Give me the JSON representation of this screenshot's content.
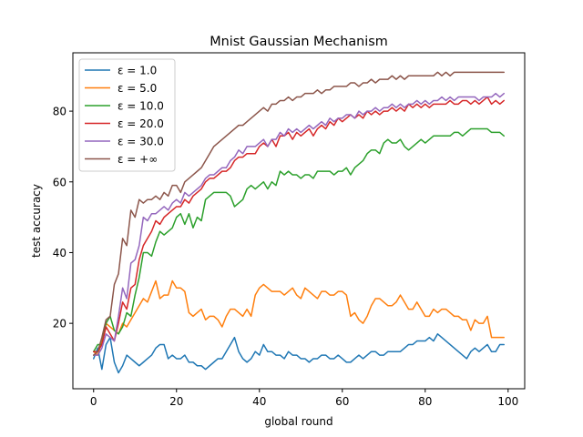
{
  "chart_data": {
    "type": "line",
    "title": "Mnist Gaussian Mechanism",
    "xlabel": "global round",
    "ylabel": "test accuracy",
    "xlim": [
      -5,
      104
    ],
    "ylim": [
      1.5,
      96.5
    ],
    "xticks": [
      0,
      20,
      40,
      60,
      80,
      100
    ],
    "yticks": [
      20,
      40,
      60,
      80
    ],
    "grid": false,
    "legend_position": "top-left",
    "x": {
      "start": 0,
      "end": 99,
      "step": 1
    },
    "series": [
      {
        "name": "ε = 1.0",
        "legend_label": "ε = 1.0",
        "color": "#1f77b4",
        "values": [
          10,
          13,
          7,
          14,
          16,
          9,
          6,
          8,
          11,
          10,
          9,
          8,
          9,
          10,
          11,
          13,
          14,
          14,
          10,
          11,
          10,
          10,
          11,
          9,
          9,
          8,
          8,
          7,
          8,
          9,
          10,
          10,
          12,
          14,
          16,
          12,
          10,
          9,
          10,
          12,
          11,
          14,
          12,
          12,
          11,
          11,
          10,
          12,
          11,
          11,
          10,
          10,
          9,
          10,
          10,
          11,
          11,
          10,
          10,
          11,
          10,
          9,
          9,
          10,
          11,
          10,
          11,
          12,
          12,
          11,
          11,
          12,
          12,
          12,
          12,
          13,
          14,
          14,
          15,
          15,
          15,
          16,
          15,
          17,
          16,
          15,
          14,
          13,
          12,
          11,
          10,
          12,
          13,
          12,
          13,
          14,
          12,
          12,
          14,
          14
        ]
      },
      {
        "name": "ε = 5.0",
        "legend_label": "ε = 5.0",
        "color": "#ff7f0e",
        "values": [
          12,
          11,
          15,
          20,
          19,
          18,
          17,
          20,
          19,
          21,
          23,
          25,
          27,
          26,
          29,
          32,
          27,
          28,
          28,
          32,
          30,
          30,
          29,
          23,
          22,
          23,
          24,
          21,
          22,
          22,
          21,
          19,
          22,
          24,
          24,
          23,
          22,
          24,
          22,
          28,
          30,
          31,
          30,
          29,
          29,
          29,
          28,
          29,
          30,
          28,
          27,
          30,
          29,
          28,
          27,
          29,
          29,
          28,
          28,
          29,
          29,
          28,
          22,
          23,
          21,
          20,
          22,
          25,
          27,
          27,
          26,
          25,
          25,
          26,
          28,
          26,
          24,
          24,
          26,
          24,
          22,
          22,
          24,
          23,
          24,
          24,
          23,
          22,
          22,
          21,
          21,
          18,
          21,
          20,
          20,
          22,
          16,
          16,
          16,
          16
        ]
      },
      {
        "name": "ε = 10.0",
        "legend_label": "ε = 10.0",
        "color": "#2ca02c",
        "values": [
          12,
          14,
          14,
          20,
          22,
          18,
          17,
          19,
          23,
          22,
          28,
          33,
          40,
          40,
          39,
          43,
          46,
          45,
          46,
          47,
          50,
          51,
          48,
          51,
          47,
          50,
          49,
          55,
          56,
          57,
          57,
          57,
          57,
          56,
          53,
          54,
          55,
          58,
          59,
          58,
          59,
          60,
          58,
          60,
          59,
          63,
          62,
          63,
          62,
          62,
          61,
          62,
          62,
          61,
          63,
          63,
          63,
          63,
          62,
          63,
          63,
          64,
          62,
          64,
          65,
          66,
          68,
          69,
          69,
          68,
          71,
          72,
          71,
          71,
          72,
          70,
          69,
          70,
          71,
          72,
          71,
          72,
          73,
          73,
          73,
          73,
          73,
          74,
          74,
          73,
          74,
          75,
          75,
          75,
          75,
          75,
          74,
          74,
          74,
          73
        ]
      },
      {
        "name": "ε = 20.0",
        "legend_label": "ε = 20.0",
        "color": "#d62728",
        "values": [
          12,
          12,
          14,
          19,
          17,
          15,
          20,
          26,
          24,
          30,
          31,
          38,
          42,
          44,
          46,
          49,
          48,
          50,
          51,
          52,
          53,
          53,
          55,
          54,
          56,
          57,
          58,
          60,
          61,
          61,
          62,
          63,
          63,
          64,
          66,
          67,
          67,
          68,
          68,
          68,
          70,
          71,
          70,
          72,
          70,
          73,
          73,
          74,
          72,
          74,
          73,
          74,
          75,
          73,
          75,
          76,
          75,
          77,
          76,
          78,
          77,
          78,
          79,
          78,
          79,
          78,
          80,
          79,
          80,
          79,
          80,
          80,
          81,
          80,
          81,
          80,
          82,
          81,
          82,
          81,
          82,
          81,
          82,
          82,
          82,
          82,
          83,
          82,
          82,
          83,
          83,
          82,
          83,
          82,
          83,
          84,
          82,
          83,
          82,
          83
        ]
      },
      {
        "name": "ε = 30.0",
        "legend_label": "ε = 30.0",
        "color": "#9467bd",
        "values": [
          11,
          11,
          13,
          17,
          16,
          15,
          22,
          30,
          27,
          37,
          38,
          42,
          50,
          49,
          51,
          51,
          52,
          53,
          52,
          54,
          55,
          54,
          57,
          56,
          57,
          58,
          59,
          61,
          62,
          62,
          63,
          64,
          64,
          66,
          67,
          69,
          68,
          70,
          70,
          70,
          71,
          72,
          70,
          72,
          72,
          74,
          73,
          75,
          74,
          75,
          74,
          75,
          76,
          75,
          76,
          77,
          76,
          78,
          77,
          78,
          78,
          79,
          79,
          78,
          80,
          79,
          80,
          80,
          81,
          80,
          81,
          81,
          82,
          81,
          82,
          81,
          82,
          82,
          83,
          82,
          83,
          82,
          83,
          83,
          84,
          83,
          84,
          83,
          84,
          84,
          84,
          84,
          84,
          83,
          84,
          84,
          84,
          85,
          84,
          85
        ]
      },
      {
        "name": "ε = +∞",
        "legend_label": "ε = +∞",
        "color": "#8c564b",
        "values": [
          11,
          12,
          16,
          21,
          22,
          31,
          34,
          44,
          42,
          52,
          50,
          55,
          54,
          55,
          55,
          56,
          55,
          57,
          56,
          59,
          59,
          57,
          60,
          61,
          62,
          63,
          64,
          66,
          68,
          70,
          71,
          72,
          73,
          74,
          75,
          76,
          76,
          77,
          78,
          79,
          80,
          81,
          80,
          82,
          82,
          83,
          83,
          84,
          83,
          84,
          84,
          85,
          85,
          85,
          86,
          85,
          86,
          86,
          87,
          87,
          87,
          87,
          88,
          88,
          87,
          88,
          88,
          89,
          88,
          89,
          89,
          89,
          90,
          89,
          90,
          89,
          90,
          90,
          90,
          90,
          90,
          90,
          90,
          91,
          90,
          91,
          90,
          91,
          91,
          91,
          91,
          91,
          91,
          91,
          91,
          91,
          91,
          91,
          91,
          91
        ]
      }
    ]
  }
}
